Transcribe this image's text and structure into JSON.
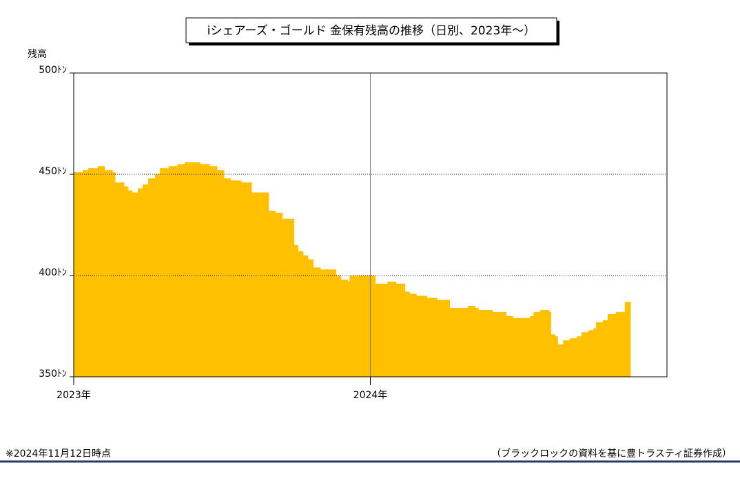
{
  "chart_data": {
    "type": "area",
    "title": "iシェアーズ・ゴールド 金保有残高の推移（日別、2023年～）",
    "y_label": "残高",
    "note": "※2024年11月12日時点",
    "source": "（ブラックロックの資料を基に豊トラスティ証券作成）",
    "color": "#ffc000",
    "grid": true,
    "xlim": [
      2023,
      2025
    ],
    "xticks": [
      {
        "value": 2023,
        "label": "2023年"
      },
      {
        "value": 2024,
        "label": "2024年"
      }
    ],
    "ylim": [
      350,
      500
    ],
    "yticks": [
      {
        "value": 350,
        "label": "350ﾄﾝ"
      },
      {
        "value": 400,
        "label": "400ﾄﾝ"
      },
      {
        "value": 450,
        "label": "450ﾄﾝ"
      },
      {
        "value": 500,
        "label": "500ﾄﾝ"
      }
    ],
    "x": [
      2023.0,
      2023.03,
      2023.049,
      2023.081,
      2023.104,
      2023.13,
      2023.139,
      2023.169,
      2023.183,
      2023.197,
      2023.216,
      2023.232,
      2023.251,
      2023.274,
      2023.29,
      2023.32,
      2023.35,
      2023.374,
      2023.413,
      2023.425,
      2023.459,
      2023.483,
      2023.506,
      2023.529,
      2023.564,
      2023.599,
      2023.645,
      2023.657,
      2023.68,
      2023.703,
      2023.742,
      2023.756,
      2023.773,
      2023.789,
      2023.807,
      2023.831,
      2023.865,
      2023.884,
      2023.9,
      2023.923,
      2023.93,
      2024.005,
      2024.016,
      2024.051,
      2024.058,
      2024.086,
      2024.116,
      2024.132,
      2024.155,
      2024.19,
      2024.225,
      2024.26,
      2024.267,
      2024.318,
      2024.329,
      2024.353,
      2024.364,
      2024.411,
      2024.457,
      2024.48,
      2024.538,
      2024.55,
      2024.573,
      2024.603,
      2024.608,
      2024.622,
      2024.631,
      2024.65,
      2024.673,
      2024.696,
      2024.712,
      2024.735,
      2024.752,
      2024.761,
      2024.784,
      2024.8,
      2024.828,
      2024.858,
      2024.872
    ],
    "values": [
      451,
      452,
      453,
      454,
      452,
      451,
      446,
      444,
      442,
      441,
      443,
      445,
      448,
      450,
      453,
      454,
      455,
      456,
      456,
      455,
      454,
      452,
      448,
      447,
      446,
      441,
      441,
      432,
      431,
      428,
      415,
      412,
      410,
      408,
      404,
      403,
      403,
      400,
      398,
      397,
      400,
      400,
      396,
      396,
      397,
      396,
      392,
      391,
      390,
      389,
      388,
      388,
      384,
      384,
      385,
      384,
      383,
      382,
      380,
      379,
      380,
      382,
      383,
      382,
      371,
      370,
      366,
      368,
      369,
      370,
      372,
      373,
      374,
      377,
      378,
      381,
      382,
      387,
      387
    ]
  }
}
